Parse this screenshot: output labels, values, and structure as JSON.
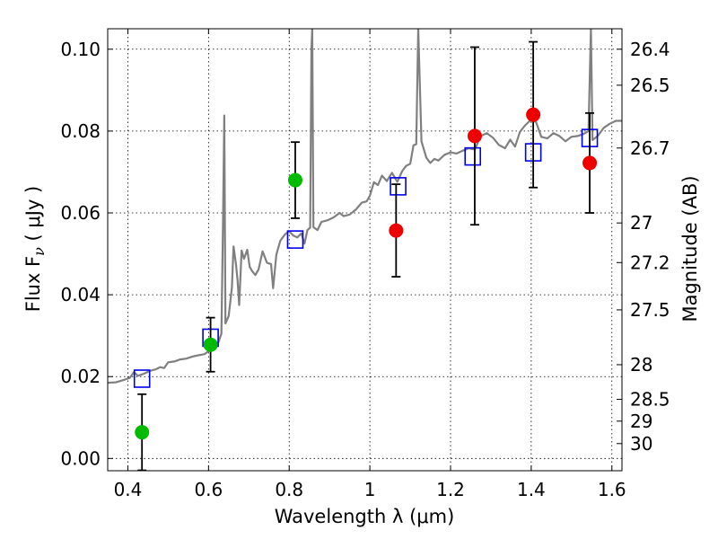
{
  "chart_data": {
    "type": "scatter",
    "xlabel": "Wavelength  λ (μm)",
    "ylabel": "Flux  F",
    "ylabel_sub": "ν",
    "ylabel_unit": "  ( μJy )",
    "y2label": "Magnitude (AB)",
    "xlim": [
      0.35,
      1.625
    ],
    "ylim": [
      -0.003,
      0.105
    ],
    "grid": true,
    "x_ticks": [
      {
        "value": 0.4,
        "label": "0.4"
      },
      {
        "value": 0.6,
        "label": "0.6"
      },
      {
        "value": 0.8,
        "label": "0.8"
      },
      {
        "value": 1.0,
        "label": "1"
      },
      {
        "value": 1.2,
        "label": "1.2"
      },
      {
        "value": 1.4,
        "label": "1.4"
      },
      {
        "value": 1.6,
        "label": "1.6"
      }
    ],
    "y_ticks": [
      {
        "value": 0.0,
        "label": "0.00"
      },
      {
        "value": 0.02,
        "label": "0.02"
      },
      {
        "value": 0.04,
        "label": "0.04"
      },
      {
        "value": 0.06,
        "label": "0.06"
      },
      {
        "value": 0.08,
        "label": "0.08"
      },
      {
        "value": 0.1,
        "label": "0.10"
      }
    ],
    "y2_ticks": [
      {
        "mag": 26.4,
        "label": "26.4"
      },
      {
        "mag": 26.5,
        "label": "26.5"
      },
      {
        "mag": 26.7,
        "label": "26.7"
      },
      {
        "mag": 27,
        "label": "27"
      },
      {
        "mag": 27.2,
        "label": "27.2"
      },
      {
        "mag": 27.5,
        "label": "27.5"
      },
      {
        "mag": 28,
        "label": "28"
      },
      {
        "mag": 28.5,
        "label": "28.5"
      },
      {
        "mag": 29,
        "label": "29"
      },
      {
        "mag": 30,
        "label": "30"
      }
    ],
    "series": [
      {
        "kind": "spectrum",
        "color": "#808080",
        "points": [
          [
            0.35,
            0.0185
          ],
          [
            0.37,
            0.0186
          ],
          [
            0.39,
            0.0192
          ],
          [
            0.405,
            0.0197
          ],
          [
            0.415,
            0.0211
          ],
          [
            0.425,
            0.0202
          ],
          [
            0.44,
            0.0207
          ],
          [
            0.455,
            0.0214
          ],
          [
            0.47,
            0.0218
          ],
          [
            0.48,
            0.0223
          ],
          [
            0.49,
            0.0221
          ],
          [
            0.5,
            0.0235
          ],
          [
            0.515,
            0.0237
          ],
          [
            0.53,
            0.0242
          ],
          [
            0.545,
            0.0244
          ],
          [
            0.56,
            0.0249
          ],
          [
            0.575,
            0.0252
          ],
          [
            0.59,
            0.0255
          ],
          [
            0.6,
            0.0262
          ],
          [
            0.61,
            0.0268
          ],
          [
            0.625,
            0.0285
          ],
          [
            0.632,
            0.0305
          ],
          [
            0.636,
            0.0578
          ],
          [
            0.639,
            0.0838
          ],
          [
            0.642,
            0.033
          ],
          [
            0.65,
            0.0348
          ],
          [
            0.658,
            0.0418
          ],
          [
            0.662,
            0.0518
          ],
          [
            0.668,
            0.0475
          ],
          [
            0.672,
            0.0435
          ],
          [
            0.676,
            0.0375
          ],
          [
            0.682,
            0.0508
          ],
          [
            0.688,
            0.0488
          ],
          [
            0.696,
            0.051
          ],
          [
            0.702,
            0.0468
          ],
          [
            0.708,
            0.0458
          ],
          [
            0.716,
            0.0448
          ],
          [
            0.724,
            0.0462
          ],
          [
            0.734,
            0.0506
          ],
          [
            0.745,
            0.0478
          ],
          [
            0.755,
            0.0475
          ],
          [
            0.76,
            0.0416
          ],
          [
            0.768,
            0.0498
          ],
          [
            0.778,
            0.0532
          ],
          [
            0.79,
            0.0548
          ],
          [
            0.8,
            0.0555
          ],
          [
            0.81,
            0.0545
          ],
          [
            0.82,
            0.054
          ],
          [
            0.83,
            0.055
          ],
          [
            0.838,
            0.0525
          ],
          [
            0.845,
            0.0558
          ],
          [
            0.852,
            0.0564
          ],
          [
            0.855,
            0.1
          ],
          [
            0.857,
            0.105
          ],
          [
            0.86,
            0.0565
          ],
          [
            0.87,
            0.0558
          ],
          [
            0.88,
            0.0578
          ],
          [
            0.895,
            0.0582
          ],
          [
            0.91,
            0.0589
          ],
          [
            0.925,
            0.06
          ],
          [
            0.935,
            0.0592
          ],
          [
            0.95,
            0.0596
          ],
          [
            0.965,
            0.0608
          ],
          [
            0.98,
            0.0625
          ],
          [
            0.992,
            0.0628
          ],
          [
            1.0,
            0.0642
          ],
          [
            1.01,
            0.0675
          ],
          [
            1.02,
            0.0668
          ],
          [
            1.03,
            0.0691
          ],
          [
            1.042,
            0.0678
          ],
          [
            1.055,
            0.0698
          ],
          [
            1.068,
            0.0676
          ],
          [
            1.08,
            0.0702
          ],
          [
            1.09,
            0.0715
          ],
          [
            1.1,
            0.072
          ],
          [
            1.108,
            0.0765
          ],
          [
            1.115,
            0.0768
          ],
          [
            1.12,
            0.105
          ],
          [
            1.128,
            0.0775
          ],
          [
            1.14,
            0.0735
          ],
          [
            1.15,
            0.0722
          ],
          [
            1.16,
            0.0732
          ],
          [
            1.17,
            0.0728
          ],
          [
            1.185,
            0.0742
          ],
          [
            1.2,
            0.0748
          ],
          [
            1.215,
            0.0745
          ],
          [
            1.23,
            0.0752
          ],
          [
            1.245,
            0.0758
          ],
          [
            1.26,
            0.0755
          ],
          [
            1.275,
            0.0788
          ],
          [
            1.29,
            0.0795
          ],
          [
            1.305,
            0.0784
          ],
          [
            1.32,
            0.0766
          ],
          [
            1.335,
            0.0758
          ],
          [
            1.348,
            0.0779
          ],
          [
            1.36,
            0.0762
          ],
          [
            1.372,
            0.0798
          ],
          [
            1.385,
            0.0814
          ],
          [
            1.4,
            0.0828
          ],
          [
            1.412,
            0.0822
          ],
          [
            1.425,
            0.0786
          ],
          [
            1.44,
            0.0782
          ],
          [
            1.455,
            0.0795
          ],
          [
            1.47,
            0.0788
          ],
          [
            1.485,
            0.0775
          ],
          [
            1.5,
            0.0786
          ],
          [
            1.515,
            0.0788
          ],
          [
            1.53,
            0.0793
          ],
          [
            1.542,
            0.08
          ],
          [
            1.548,
            0.105
          ],
          [
            1.552,
            0.0778
          ],
          [
            1.565,
            0.0788
          ],
          [
            1.58,
            0.0808
          ],
          [
            1.595,
            0.0818
          ],
          [
            1.61,
            0.0825
          ],
          [
            1.625,
            0.0825
          ]
        ]
      },
      {
        "kind": "model_points",
        "marker": "square",
        "color": "#0000ee",
        "points": [
          [
            0.435,
            0.0195
          ],
          [
            0.605,
            0.0295
          ],
          [
            0.815,
            0.0535
          ],
          [
            1.07,
            0.0665
          ],
          [
            1.255,
            0.0738
          ],
          [
            1.405,
            0.0748
          ],
          [
            1.545,
            0.0783
          ]
        ]
      },
      {
        "kind": "observed_detected",
        "marker": "circle",
        "color": "#00bb00",
        "points": [
          {
            "x": 0.435,
            "y": 0.0064,
            "err_low": 0.0093,
            "err_high": 0.0093
          },
          {
            "x": 0.605,
            "y": 0.0278,
            "err_low": 0.0066,
            "err_high": 0.0066
          },
          {
            "x": 0.815,
            "y": 0.068,
            "err_low": 0.0093,
            "err_high": 0.0093
          }
        ]
      },
      {
        "kind": "observed_upper",
        "marker": "circle",
        "color": "#ee0000",
        "points": [
          {
            "x": 1.065,
            "y": 0.0557,
            "err_low": 0.0113,
            "err_high": 0.0113
          },
          {
            "x": 1.26,
            "y": 0.0788,
            "err_low": 0.0217,
            "err_high": 0.0217
          },
          {
            "x": 1.405,
            "y": 0.084,
            "err_low": 0.0178,
            "err_high": 0.0178
          },
          {
            "x": 1.545,
            "y": 0.0722,
            "err_low": 0.0122,
            "err_high": 0.0122
          }
        ]
      }
    ]
  }
}
